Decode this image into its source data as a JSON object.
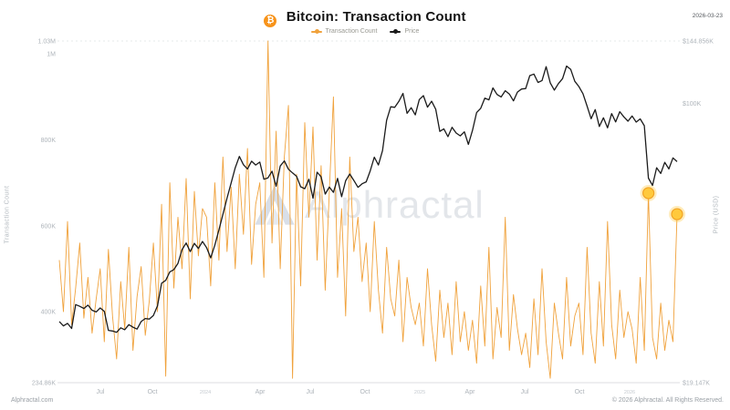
{
  "header": {
    "bitcoin_symbol": "₿",
    "title": "Bitcoin: Transaction Count",
    "date": "2026-03-23",
    "legend": [
      {
        "label": "Transaction Count",
        "color": "#F0A23C"
      },
      {
        "label": "Price",
        "color": "#1b1b1b"
      }
    ]
  },
  "watermark": {
    "text": "Alphractal"
  },
  "footer": {
    "left": "Alphractal.com",
    "right": "© 2026 Alphractal. All Rights Reserved."
  },
  "colors": {
    "accent_orange": "#F0A23C",
    "bitcoin_orange": "#F7931A",
    "price_black": "#1b1b1b",
    "highlight_dot_fill": "#FFC93C",
    "highlight_dot_stroke": "#F2A324",
    "axis_text": "#aeb4ba",
    "year_text": "#c5cad0",
    "grid_line": "#e6e8ea"
  },
  "chart_data": {
    "type": "line",
    "title": "Bitcoin: Transaction Count",
    "x_range": {
      "start": "2023-05",
      "end": "2026-03-23",
      "interval": "weekly",
      "points": 152
    },
    "x_ticks": [
      {
        "label": "Jul",
        "pos": 0.0665,
        "year": false
      },
      {
        "label": "Oct",
        "pos": 0.1507,
        "year": false
      },
      {
        "label": "2024",
        "pos": 0.2364,
        "year": true
      },
      {
        "label": "Apr",
        "pos": 0.325,
        "year": false
      },
      {
        "label": "Jul",
        "pos": 0.4062,
        "year": false
      },
      {
        "label": "Oct",
        "pos": 0.4948,
        "year": false
      },
      {
        "label": "2025",
        "pos": 0.5835,
        "year": true
      },
      {
        "label": "Apr",
        "pos": 0.6647,
        "year": false
      },
      {
        "label": "Jul",
        "pos": 0.7534,
        "year": false
      },
      {
        "label": "Oct",
        "pos": 0.842,
        "year": false
      },
      {
        "label": "2026",
        "pos": 0.9232,
        "year": true
      }
    ],
    "left_axis": {
      "label": "Transaction Count",
      "scale": "linear",
      "unit": "thousand transactions",
      "min": 234.86,
      "max": 1030,
      "ticks": [
        {
          "label": "1.03M",
          "value": 1030
        },
        {
          "label": "1M",
          "value": 1000
        },
        {
          "label": "800K",
          "value": 800
        },
        {
          "label": "600K",
          "value": 600
        },
        {
          "label": "400K",
          "value": 400
        },
        {
          "label": "234.86K",
          "value": 234.86
        }
      ]
    },
    "right_axis": {
      "label": "Price (USD)",
      "scale": "log",
      "unit": "thousand USD",
      "min": 19.147,
      "max": 144.856,
      "ticks": [
        {
          "label": "$144.856K",
          "value": 144.856
        },
        {
          "label": "$100K",
          "value": 100
        },
        {
          "label": "$19.147K",
          "value": 19.147
        }
      ]
    },
    "series": [
      {
        "name": "Transaction Count",
        "axis": "left",
        "color": "#F0A23C",
        "width": 0.9,
        "values": [
          520,
          400,
          610,
          370,
          455,
          560,
          385,
          480,
          350,
          430,
          500,
          330,
          545,
          390,
          290,
          470,
          360,
          550,
          310,
          435,
          505,
          345,
          425,
          560,
          400,
          650,
          250,
          700,
          455,
          620,
          500,
          710,
          430,
          680,
          530,
          640,
          620,
          460,
          700,
          520,
          760,
          540,
          690,
          500,
          720,
          580,
          780,
          510,
          650,
          700,
          480,
          1030,
          560,
          820,
          500,
          760,
          880,
          245,
          720,
          460,
          840,
          620,
          830,
          520,
          740,
          450,
          680,
          900,
          480,
          640,
          390,
          760,
          540,
          620,
          470,
          560,
          400,
          610,
          450,
          350,
          550,
          430,
          390,
          520,
          330,
          480,
          410,
          370,
          420,
          320,
          500,
          370,
          285,
          450,
          340,
          420,
          300,
          470,
          330,
          400,
          310,
          380,
          280,
          460,
          320,
          550,
          290,
          410,
          340,
          620,
          310,
          440,
          360,
          300,
          350,
          270,
          430,
          300,
          500,
          330,
          245,
          420,
          350,
          290,
          480,
          320,
          390,
          420,
          300,
          550,
          350,
          280,
          470,
          320,
          610,
          370,
          290,
          450,
          340,
          400,
          360,
          280,
          480,
          310,
          676,
          340,
          290,
          420,
          310,
          380,
          330,
          627
        ]
      },
      {
        "name": "Price",
        "axis": "right",
        "color": "#1b1b1b",
        "width": 1.3,
        "values": [
          27.5,
          26.8,
          27.2,
          26.4,
          30.4,
          30.1,
          29.7,
          30.3,
          29.4,
          29.1,
          29.8,
          29.2,
          26.1,
          26.0,
          25.8,
          26.5,
          26.2,
          27.0,
          26.6,
          26.3,
          27.5,
          28.0,
          27.9,
          28.5,
          30.2,
          34.5,
          35.1,
          36.9,
          37.4,
          38.8,
          42.1,
          43.8,
          41.6,
          43.7,
          42.4,
          44.2,
          42.6,
          40.1,
          43.2,
          47.3,
          51.9,
          57.1,
          62.5,
          68.4,
          73.1,
          69.6,
          67.9,
          71.1,
          69.5,
          70.7,
          63.9,
          64.4,
          67.0,
          61.3,
          69.1,
          71.2,
          67.8,
          66.3,
          65.0,
          61.1,
          60.4,
          63.9,
          57.1,
          66.6,
          64.8,
          58.5,
          61.0,
          59.1,
          64.2,
          57.6,
          63.3,
          65.9,
          63.4,
          60.9,
          62.2,
          62.9,
          67.1,
          72.8,
          69.5,
          75.7,
          90.6,
          98.1,
          97.8,
          101.3,
          106.2,
          94.4,
          97.6,
          93.5,
          102.4,
          104.8,
          97.9,
          101.4,
          96.7,
          84.8,
          86.1,
          82.2,
          86.9,
          84.0,
          82.6,
          84.6,
          78.5,
          85.3,
          94.8,
          97.2,
          103.3,
          102.2,
          109.7,
          105.5,
          104.0,
          107.9,
          105.8,
          101.6,
          107.1,
          109.0,
          109.3,
          118.0,
          119.1,
          113.3,
          114.6,
          124.4,
          113.1,
          108.3,
          112.6,
          115.9,
          124.9,
          122.5,
          114.1,
          110.6,
          106.0,
          98.5,
          91.4,
          96.5,
          87.3,
          91.9,
          86.6,
          94.2,
          89.7,
          95.3,
          92.4,
          90.1,
          92.9,
          89.6,
          91.3,
          87.7,
          64.3,
          61.6,
          68.4,
          66.1,
          70.6,
          67.9,
          72.5,
          70.9
        ]
      }
    ],
    "highlight_points": [
      {
        "series": 0,
        "index": 144,
        "value": 676
      },
      {
        "series": 0,
        "index": 151,
        "value": 627
      }
    ]
  }
}
